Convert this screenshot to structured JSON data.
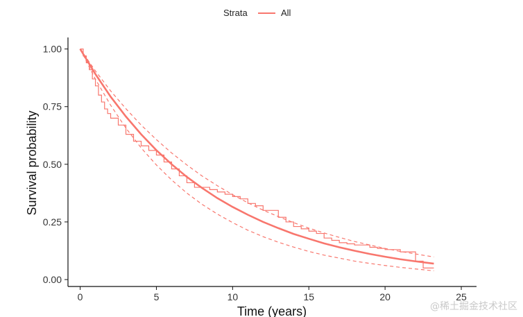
{
  "chart_data": {
    "type": "line",
    "xlabel": "Time (years)",
    "ylabel": "Survival probability",
    "xlim": [
      -0.8,
      26
    ],
    "ylim": [
      -0.03,
      1.05
    ],
    "xticks": [
      0,
      5,
      10,
      15,
      20,
      25
    ],
    "xtick_labels": [
      "0",
      "5",
      "10",
      "15",
      "20",
      "25"
    ],
    "yticks": [
      0.0,
      0.25,
      0.5,
      0.75,
      1.0
    ],
    "ytick_labels": [
      "0.00",
      "0.25",
      "0.50",
      "0.75",
      "1.00"
    ],
    "grid": false,
    "legend": {
      "position": "top",
      "title": "Strata",
      "entries": [
        "All"
      ]
    },
    "color": "#F8766D",
    "series": [
      {
        "name": "All",
        "kind": "parametric-fit",
        "style": "solid",
        "x": [
          0,
          1,
          2,
          3,
          4,
          5,
          6,
          7,
          8,
          9,
          10,
          11,
          12,
          13,
          14,
          15,
          16,
          17,
          18,
          19,
          20,
          21,
          22,
          23.2
        ],
        "y": [
          1.0,
          0.891,
          0.793,
          0.707,
          0.63,
          0.561,
          0.5,
          0.445,
          0.397,
          0.353,
          0.315,
          0.281,
          0.25,
          0.223,
          0.198,
          0.177,
          0.157,
          0.14,
          0.125,
          0.111,
          0.099,
          0.088,
          0.079,
          0.069
        ]
      },
      {
        "kind": "parametric-ci-upper",
        "style": "dashed",
        "x": [
          0,
          1,
          2,
          3,
          4,
          5,
          6,
          7,
          8,
          9,
          10,
          11,
          12,
          13,
          14,
          15,
          16,
          17,
          18,
          19,
          20,
          21,
          22,
          23.2
        ],
        "y": [
          1.0,
          0.905,
          0.818,
          0.741,
          0.67,
          0.607,
          0.549,
          0.497,
          0.449,
          0.407,
          0.368,
          0.333,
          0.301,
          0.273,
          0.247,
          0.223,
          0.202,
          0.183,
          0.165,
          0.15,
          0.135,
          0.122,
          0.111,
          0.098
        ]
      },
      {
        "kind": "parametric-ci-lower",
        "style": "dashed",
        "x": [
          0,
          1,
          2,
          3,
          4,
          5,
          6,
          7,
          8,
          9,
          10,
          11,
          12,
          13,
          14,
          15,
          16,
          17,
          18,
          19,
          20,
          21,
          22,
          23.2
        ],
        "y": [
          1.0,
          0.869,
          0.756,
          0.657,
          0.571,
          0.497,
          0.432,
          0.375,
          0.326,
          0.284,
          0.247,
          0.214,
          0.186,
          0.162,
          0.141,
          0.122,
          0.106,
          0.093,
          0.08,
          0.07,
          0.061,
          0.053,
          0.046,
          0.038
        ]
      },
      {
        "kind": "kaplan-meier-step",
        "style": "solid-thin",
        "x": [
          0,
          0.2,
          0.4,
          0.6,
          0.8,
          1.0,
          1.2,
          1.4,
          1.6,
          1.8,
          2.0,
          2.5,
          3.0,
          3.5,
          4.0,
          4.5,
          5.0,
          5.5,
          6.0,
          6.5,
          7.0,
          7.5,
          8.0,
          8.5,
          9.0,
          9.5,
          10.0,
          10.5,
          11.0,
          11.5,
          12.0,
          12.5,
          13.0,
          13.5,
          14.0,
          14.5,
          15.0,
          15.5,
          16.0,
          16.5,
          17.0,
          17.5,
          18.0,
          18.5,
          19.0,
          19.5,
          20.0,
          20.5,
          21.0,
          21.5,
          22.0,
          22.5,
          23.2
        ],
        "y": [
          1.0,
          0.97,
          0.94,
          0.91,
          0.87,
          0.84,
          0.8,
          0.77,
          0.74,
          0.72,
          0.7,
          0.67,
          0.63,
          0.6,
          0.58,
          0.56,
          0.54,
          0.51,
          0.48,
          0.45,
          0.42,
          0.4,
          0.4,
          0.39,
          0.38,
          0.37,
          0.36,
          0.35,
          0.33,
          0.32,
          0.3,
          0.3,
          0.27,
          0.25,
          0.23,
          0.22,
          0.21,
          0.2,
          0.18,
          0.17,
          0.16,
          0.155,
          0.15,
          0.15,
          0.14,
          0.135,
          0.13,
          0.13,
          0.12,
          0.12,
          0.08,
          0.05,
          0.05
        ]
      }
    ]
  },
  "watermark": "@稀土掘金技术社区"
}
